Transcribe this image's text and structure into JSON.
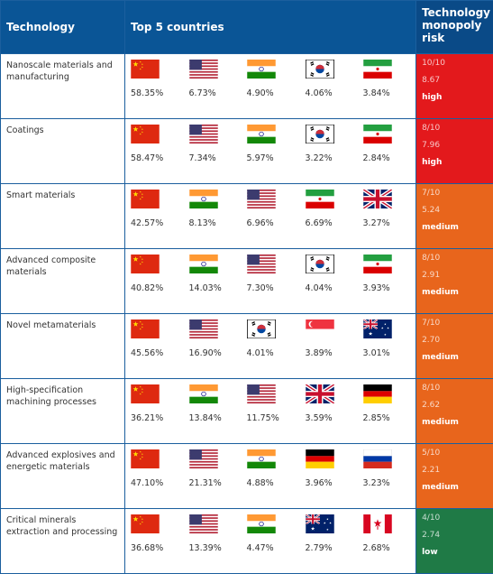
{
  "header": {
    "technology": "Technology",
    "countries": "Top 5 countries",
    "risk": "Technology monopoly risk"
  },
  "rows": [
    {
      "technology": "Nanoscale materials and manufacturing",
      "shares": [
        "58.35%",
        "6.73%",
        "4.90%",
        "4.06%",
        "3.84%"
      ],
      "score": "10/10",
      "index": "8.67",
      "level": "high"
    },
    {
      "technology": "Coatings",
      "shares": [
        "58.47%",
        "7.34%",
        "5.97%",
        "3.22%",
        "2.84%"
      ],
      "score": "8/10",
      "index": "7.96",
      "level": "high"
    },
    {
      "technology": "Smart materials",
      "shares": [
        "42.57%",
        "8.13%",
        "6.96%",
        "6.69%",
        "3.27%"
      ],
      "score": "7/10",
      "index": "5.24",
      "level": "medium"
    },
    {
      "technology": "Advanced composite materials",
      "shares": [
        "40.82%",
        "14.03%",
        "7.30%",
        "4.04%",
        "3.93%"
      ],
      "score": "8/10",
      "index": "2.91",
      "level": "medium"
    },
    {
      "technology": "Novel metamaterials",
      "shares": [
        "45.56%",
        "16.90%",
        "4.01%",
        "3.89%",
        "3.01%"
      ],
      "score": "7/10",
      "index": "2.70",
      "level": "medium"
    },
    {
      "technology": "High-specification machining processes",
      "shares": [
        "36.21%",
        "13.84%",
        "11.75%",
        "3.59%",
        "2.85%"
      ],
      "score": "8/10",
      "index": "2.62",
      "level": "medium"
    },
    {
      "technology": "Advanced explosives and energetic materials",
      "shares": [
        "47.10%",
        "21.31%",
        "4.88%",
        "3.96%",
        "3.23%"
      ],
      "score": "5/10",
      "index": "2.21",
      "level": "medium"
    },
    {
      "technology": "Critical minerals extraction and processing",
      "shares": [
        "36.68%",
        "13.39%",
        "4.47%",
        "2.79%",
        "2.68%"
      ],
      "score": "4/10",
      "index": "2.74",
      "level": "low"
    }
  ]
}
